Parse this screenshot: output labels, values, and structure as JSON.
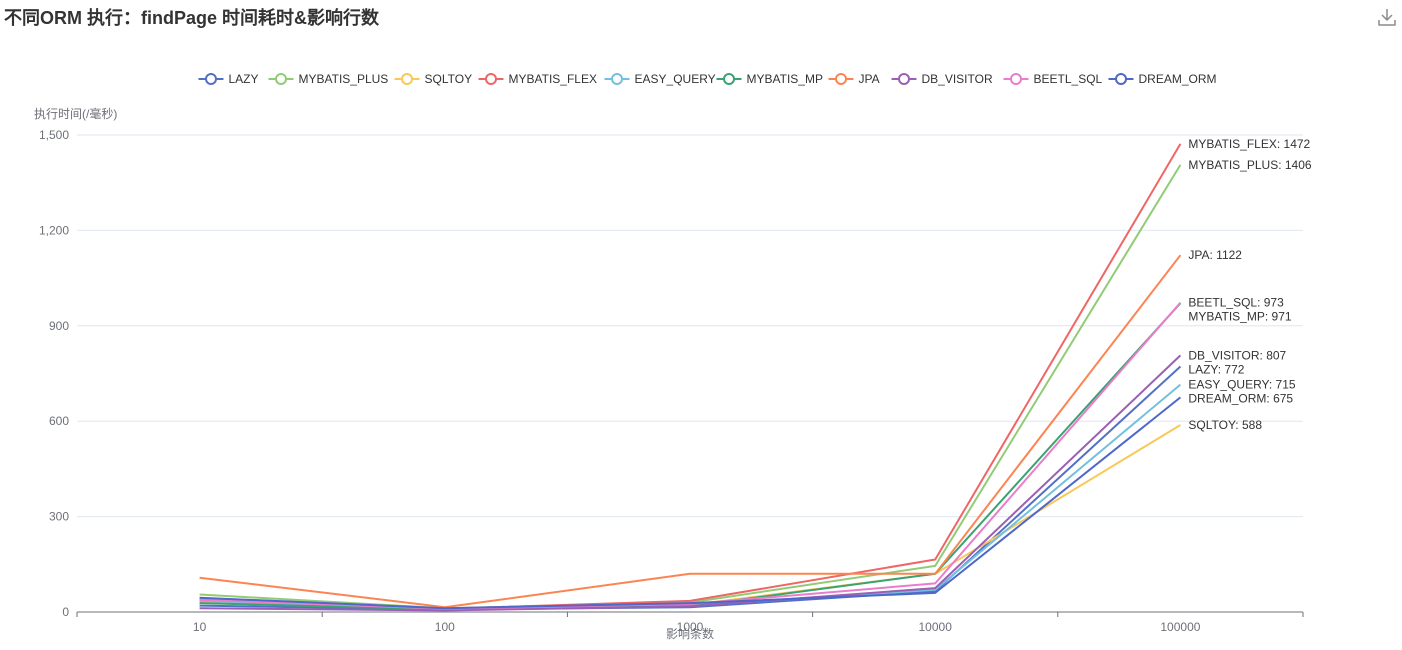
{
  "title": "不同ORM 执行：findPage 时间耗时&影响行数",
  "toolbar": {
    "download_icon": "download-icon"
  },
  "chart_data": {
    "type": "line",
    "title": "不同ORM 执行：findPage 时间耗时&影响行数",
    "xlabel": "影响条数",
    "ylabel": "执行时间(/毫秒)",
    "x": [
      "10",
      "100",
      "1000",
      "10000",
      "100000"
    ],
    "ylim": [
      0,
      1500
    ],
    "yticks": [
      0,
      300,
      600,
      900,
      1200,
      1500
    ],
    "ytick_labels": [
      "0",
      "300",
      "600",
      "900",
      "1,200",
      "1,500"
    ],
    "grid": true,
    "legend_position": "top-center",
    "series": [
      {
        "name": "LAZY",
        "color": "#5470c6",
        "values": [
          20,
          8,
          15,
          65,
          772
        ],
        "end_label": "LAZY: 772"
      },
      {
        "name": "MYBATIS_PLUS",
        "color": "#91cc75",
        "values": [
          55,
          12,
          30,
          145,
          1406
        ],
        "end_label": "MYBATIS_PLUS: 1406"
      },
      {
        "name": "SQLTOY",
        "color": "#fac858",
        "values": [
          30,
          10,
          22,
          120,
          588
        ],
        "end_label": "SQLTOY: 588"
      },
      {
        "name": "MYBATIS_FLEX",
        "color": "#ee6666",
        "values": [
          40,
          10,
          35,
          165,
          1472
        ],
        "end_label": "MYBATIS_FLEX: 1472"
      },
      {
        "name": "EASY_QUERY",
        "color": "#73c0de",
        "values": [
          35,
          10,
          20,
          70,
          715
        ],
        "end_label": "EASY_QUERY: 715"
      },
      {
        "name": "MYBATIS_MP",
        "color": "#3ba272",
        "values": [
          28,
          8,
          18,
          120,
          971
        ],
        "end_label": "MYBATIS_MP: 971"
      },
      {
        "name": "JPA",
        "color": "#fc8452",
        "values": [
          108,
          15,
          120,
          120,
          1122
        ],
        "end_label": "JPA: 1122"
      },
      {
        "name": "DB_VISITOR",
        "color": "#9a60b4",
        "values": [
          12,
          5,
          18,
          75,
          807
        ],
        "end_label": "DB_VISITOR: 807"
      },
      {
        "name": "BEETL_SQL",
        "color": "#ea7ccc",
        "values": [
          38,
          10,
          25,
          90,
          973
        ],
        "end_label": "BEETL_SQL: 973"
      },
      {
        "name": "DREAM_ORM",
        "color": "#4f67c9",
        "values": [
          45,
          12,
          28,
          60,
          675
        ],
        "end_label": "DREAM_ORM: 675"
      }
    ]
  }
}
